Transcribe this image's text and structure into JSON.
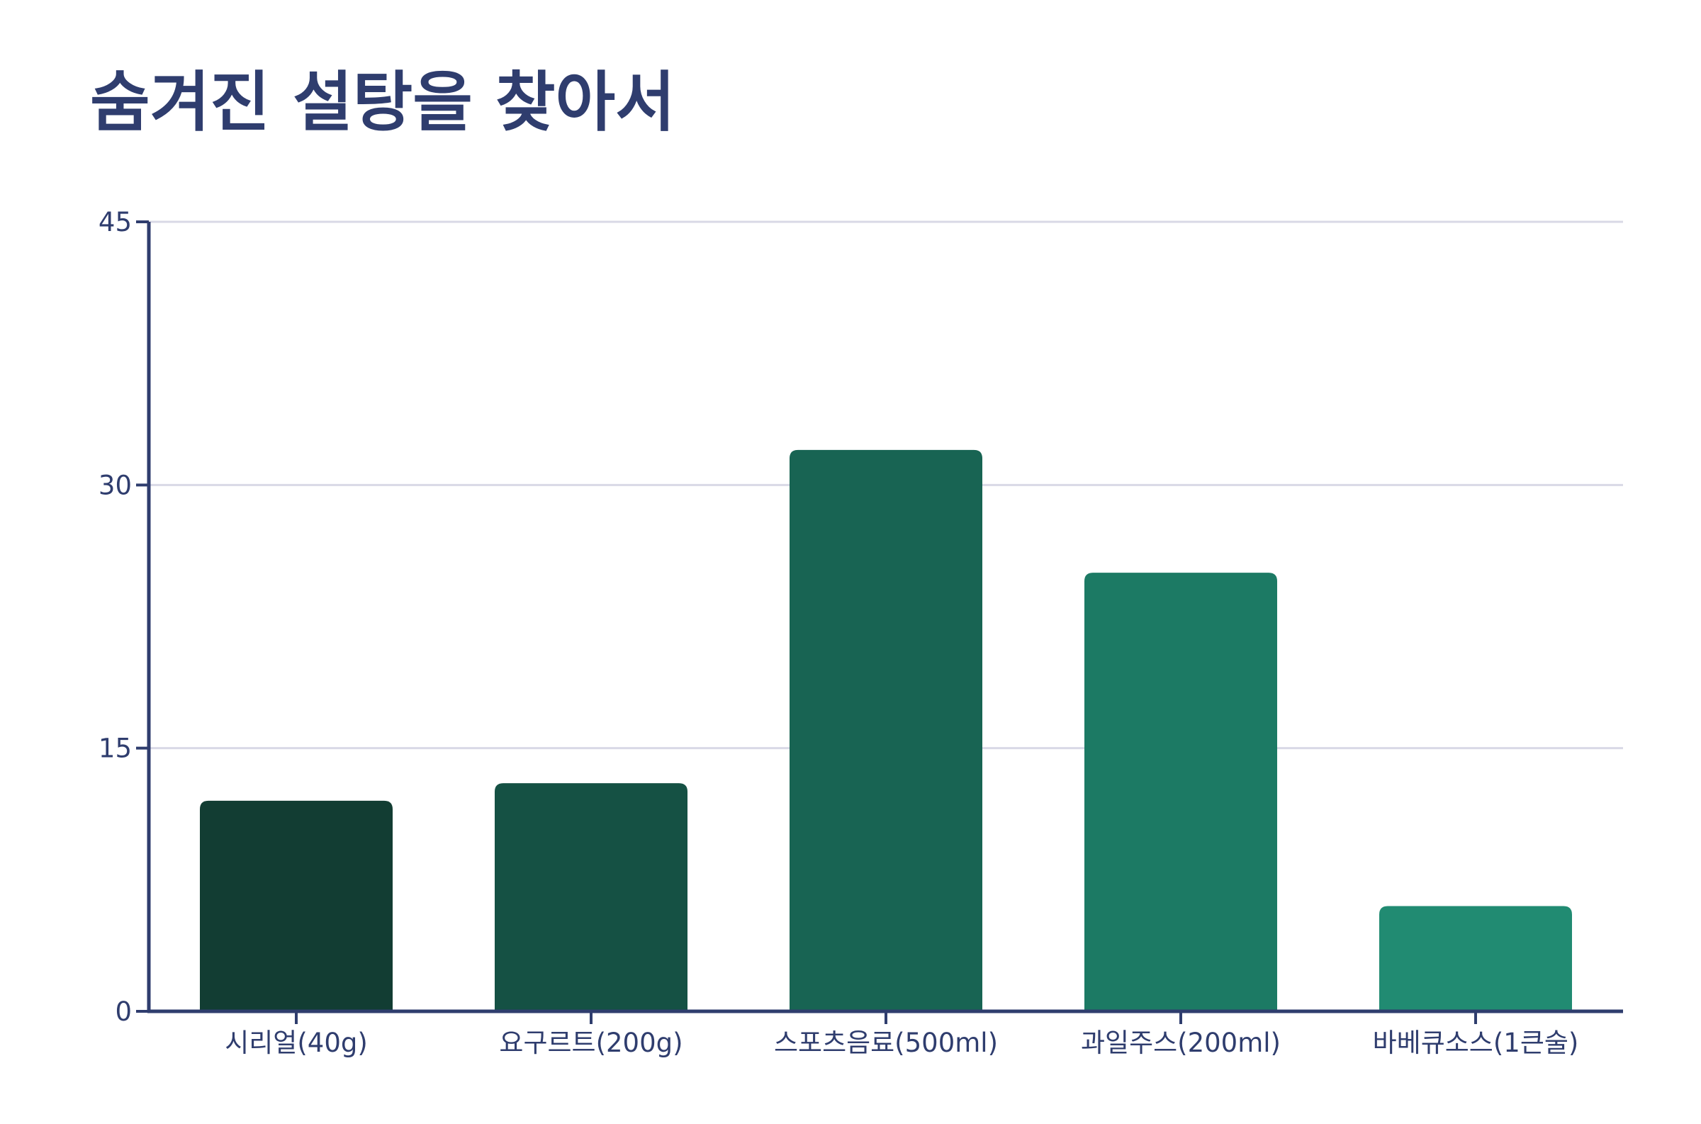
{
  "chart_data": {
    "type": "bar",
    "title": "숨겨진 설탕을 찾아서",
    "xlabel": "",
    "ylabel": "",
    "categories": [
      "시리얼(40g)",
      "요구르트(200g)",
      "스포츠음료(500ml)",
      "과일주스(200ml)",
      "바베큐소스(1큰술)"
    ],
    "values": [
      12,
      13,
      32,
      25,
      6
    ],
    "ylim": [
      0,
      45
    ],
    "yticks": [
      0,
      15,
      30,
      45
    ],
    "grid": true,
    "legend": "none",
    "bar_colors": [
      "#123d33",
      "#155144",
      "#186453",
      "#1c7a64",
      "#218b72"
    ],
    "axis_color": "#2f3d6e",
    "grid_color": "#d9d9e6"
  }
}
